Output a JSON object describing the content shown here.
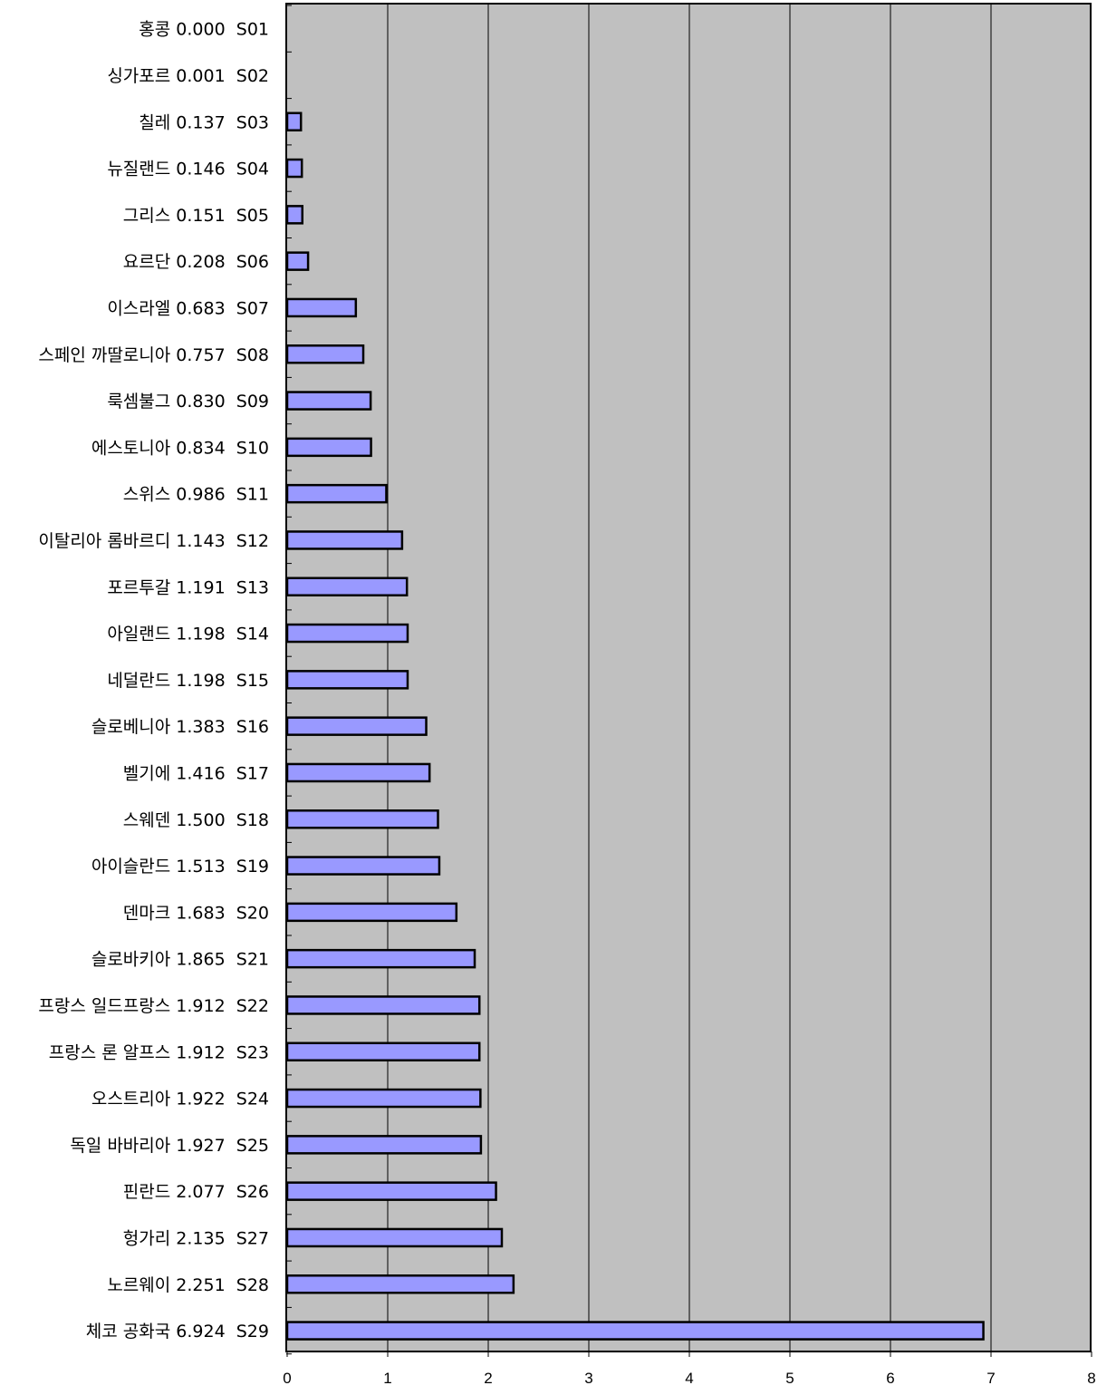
{
  "chart_data": {
    "type": "bar",
    "orientation": "horizontal",
    "categories": [
      "홍콩 0.000  S01",
      "싱가포르 0.001  S02",
      "칠레 0.137  S03",
      "뉴질랜드 0.146  S04",
      "그리스 0.151  S05",
      "요르단 0.208  S06",
      "이스라엘 0.683  S07",
      "스페인 까딸로니아 0.757  S08",
      "룩셈불그 0.830  S09",
      "에스토니아 0.834  S10",
      "스위스 0.986  S11",
      "이탈리아 롬바르디 1.143  S12",
      "포르투갈 1.191  S13",
      "아일랜드 1.198  S14",
      "네덜란드 1.198  S15",
      "슬로베니아 1.383  S16",
      "벨기에 1.416  S17",
      "스웨덴 1.500  S18",
      "아이슬란드 1.513  S19",
      "덴마크 1.683  S20",
      "슬로바키아 1.865  S21",
      "프랑스 일드프랑스 1.912  S22",
      "프랑스 론 알프스 1.912  S23",
      "오스트리아 1.922  S24",
      "독일 바바리아 1.927  S25",
      "핀란드 2.077  S26",
      "헝가리 2.135  S27",
      "노르웨이 2.251  S28",
      "체코 공화국 6.924  S29"
    ],
    "values": [
      0.0,
      0.001,
      0.137,
      0.146,
      0.151,
      0.208,
      0.683,
      0.757,
      0.83,
      0.834,
      0.986,
      1.143,
      1.191,
      1.198,
      1.198,
      1.383,
      1.416,
      1.5,
      1.513,
      1.683,
      1.865,
      1.912,
      1.912,
      1.922,
      1.927,
      2.077,
      2.135,
      2.251,
      6.924
    ],
    "xlim": [
      0,
      8
    ],
    "x_ticks": [
      "0",
      "1",
      "2",
      "3",
      "4",
      "5",
      "6",
      "7",
      "8"
    ],
    "title": "",
    "xlabel": "",
    "ylabel": "",
    "grid": "vertical",
    "legend": "none",
    "colors": {
      "bar_fill": "#9999ff",
      "bar_stroke": "#000000",
      "plot_background": "#c0c0c0",
      "gridline": "#000000"
    }
  }
}
